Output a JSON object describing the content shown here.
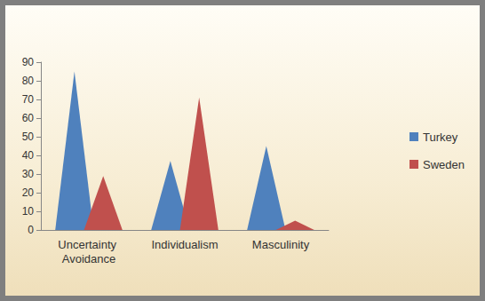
{
  "chart_data": {
    "type": "bar",
    "categories": [
      "Uncertainty Avoidance",
      "Individualism",
      "Masculinity"
    ],
    "series": [
      {
        "name": "Turkey",
        "color": "#4f81bd",
        "values": [
          85,
          37,
          45
        ]
      },
      {
        "name": "Sweden",
        "color": "#c0504d",
        "values": [
          29,
          71,
          5
        ]
      }
    ],
    "ylim": [
      0,
      90
    ],
    "yticks": [
      0,
      10,
      20,
      30,
      40,
      50,
      60,
      70,
      80,
      90
    ],
    "grid": false,
    "legend": "right"
  }
}
